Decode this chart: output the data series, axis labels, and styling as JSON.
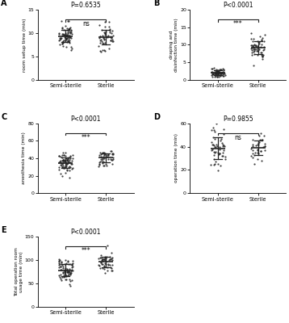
{
  "panels": [
    {
      "label": "A",
      "title": "P=0.6535",
      "sig_text": "ns",
      "ylabel": "room setup time (min)",
      "ylim": [
        0,
        15
      ],
      "yticks": [
        0,
        5,
        10,
        15
      ],
      "groups": [
        "Semi-sterile",
        "Sterile"
      ],
      "group1_mean": 9.2,
      "group1_sd": 1.4,
      "group2_mean": 9.0,
      "group2_sd": 1.4,
      "group1_n": 80,
      "group2_n": 50
    },
    {
      "label": "B",
      "title": "P<0.0001",
      "sig_text": "***",
      "ylabel": "draping and\ndisinfection time (min)",
      "ylim": [
        0,
        20
      ],
      "yticks": [
        0,
        5,
        10,
        15,
        20
      ],
      "groups": [
        "Semi-sterile",
        "Sterile"
      ],
      "group1_mean": 2.0,
      "group1_sd": 0.6,
      "group2_mean": 9.0,
      "group2_sd": 1.8,
      "group1_n": 70,
      "group2_n": 55
    },
    {
      "label": "C",
      "title": "P<0.0001",
      "sig_text": "***",
      "ylabel": "anesthesia time (min)",
      "ylim": [
        0,
        80
      ],
      "yticks": [
        0,
        20,
        40,
        60,
        80
      ],
      "groups": [
        "Semi-sterile",
        "Sterile"
      ],
      "group1_mean": 35.0,
      "group1_sd": 5.5,
      "group2_mean": 41.0,
      "group2_sd": 5.0,
      "group1_n": 75,
      "group2_n": 45
    },
    {
      "label": "D",
      "title": "P=0.9855",
      "sig_text": "ns",
      "ylabel": "operation time (min)",
      "ylim": [
        0,
        60
      ],
      "yticks": [
        0,
        20,
        40,
        60
      ],
      "groups": [
        "Semi-sterile",
        "Sterile"
      ],
      "group1_mean": 39.0,
      "group1_sd": 7.5,
      "group2_mean": 38.5,
      "group2_sd": 6.5,
      "group1_n": 50,
      "group2_n": 35
    },
    {
      "label": "E",
      "title": "P<0.0001",
      "sig_text": "***",
      "ylabel": "Total operation room\nusage time (min)",
      "ylim": [
        0,
        150
      ],
      "yticks": [
        0,
        50,
        100,
        150
      ],
      "groups": [
        "Semi-sterile",
        "Sterile"
      ],
      "group1_mean": 80.0,
      "group1_sd": 12.0,
      "group2_mean": 95.0,
      "group2_sd": 12.0,
      "group1_n": 80,
      "group2_n": 50
    }
  ],
  "dot_color": "#222222",
  "dot_size": 2.5,
  "bar_color": "#222222",
  "sig_line_color": "#222222",
  "background_color": "#ffffff"
}
